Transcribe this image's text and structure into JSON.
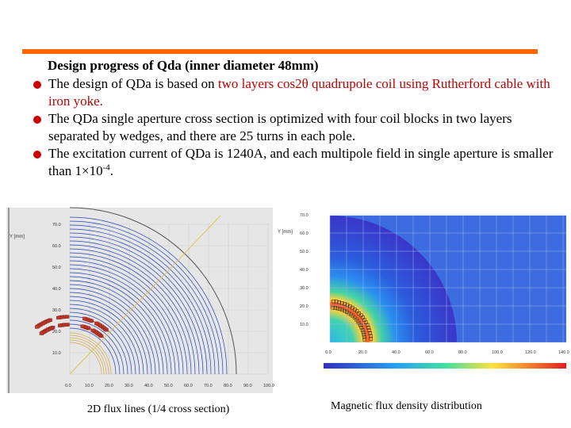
{
  "slide": {
    "heading": "Design progress of Qda (inner diameter 48mm)",
    "accent_color": "#ff6600",
    "bullet_color": "#cc0000",
    "bullets": [
      {
        "pre": "The design of QDa is based on ",
        "hl": "two layers cos2θ quadrupole coil using Rutherford cable with iron yoke.",
        "post": ""
      },
      {
        "pre": "The QDa single aperture cross section is optimized with four coil blocks in two layers separated by wedges, and there are 25 turns in each pole.",
        "hl": "",
        "post": ""
      },
      {
        "pre": "The excitation current of QDa is 1240A, and each multipole field in single aperture is smaller than 1×10",
        "sup": "-4",
        "post": "."
      }
    ]
  },
  "figure_flux_lines": {
    "caption": "2D flux lines (1/4 cross section)",
    "y_axis_label": "Y [mm]",
    "y_ticks": [
      "70.0",
      "60.0",
      "50.0",
      "40.0",
      "30.0",
      "20.0",
      "10.0"
    ],
    "x_ticks": [
      "0.0",
      "10.0",
      "20.0",
      "30.0",
      "40.0",
      "50.0",
      "60.0",
      "70.0",
      "80.0",
      "90.0",
      "100.0"
    ]
  },
  "figure_flux_density": {
    "caption": "Magnetic flux density distribution",
    "y_axis_label": "Y [mm]",
    "y_ticks": [
      "70.0",
      "60.0",
      "50.0",
      "40.0",
      "30.0",
      "20.0",
      "10.0"
    ],
    "x_ticks": [
      "0.0",
      "20.0",
      "40.0",
      "60.0",
      "80.0",
      "100.0",
      "120.0",
      "140.0"
    ]
  }
}
